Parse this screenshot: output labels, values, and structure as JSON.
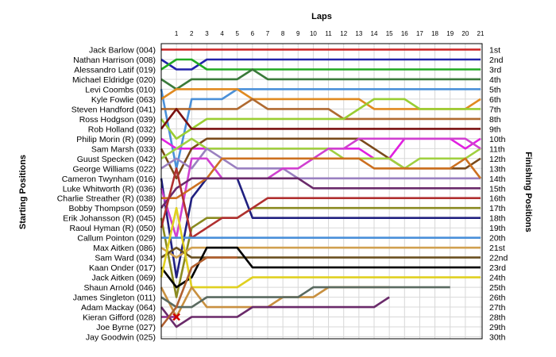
{
  "chart_data": {
    "type": "line",
    "title": "Laps",
    "ylabel_left": "Starting Positions",
    "ylabel_right": "Finishing Positions",
    "laps": [
      1,
      2,
      3,
      4,
      5,
      6,
      7,
      8,
      9,
      10,
      11,
      12,
      13,
      14,
      15,
      16,
      17,
      18,
      19,
      20,
      21
    ],
    "finishing_labels": [
      "1st",
      "2nd",
      "3rd",
      "4th",
      "5th",
      "6th",
      "7th",
      "8th",
      "9th",
      "10th",
      "11th",
      "12th",
      "13th",
      "14th",
      "15th",
      "16th",
      "17th",
      "18th",
      "19th",
      "20th",
      "21st",
      "22nd",
      "23rd",
      "24th",
      "25th",
      "26th",
      "27th",
      "28th",
      "29th",
      "30th"
    ],
    "grid_on": true,
    "y_inverted": true,
    "ylim": [
      1,
      30
    ],
    "xlim": [
      0,
      21
    ],
    "series": [
      {
        "name": "Jack Barlow (004)",
        "color": "#cc2222",
        "positions": [
          1,
          1,
          1,
          1,
          1,
          1,
          1,
          1,
          1,
          1,
          1,
          1,
          1,
          1,
          1,
          1,
          1,
          1,
          1,
          1,
          1,
          1
        ]
      },
      {
        "name": "Nathan Harrison (008)",
        "color": "#2222aa",
        "positions": [
          2,
          3,
          3,
          2,
          2,
          2,
          2,
          2,
          2,
          2,
          2,
          2,
          2,
          2,
          2,
          2,
          2,
          2,
          2,
          2,
          2,
          2
        ]
      },
      {
        "name": "Alessandro Latif (019)",
        "color": "#22aa22",
        "positions": [
          3,
          2,
          2,
          3,
          3,
          3,
          3,
          3,
          3,
          3,
          3,
          3,
          3,
          3,
          3,
          3,
          3,
          3,
          3,
          3,
          3,
          3
        ]
      },
      {
        "name": "Michael Eldridge (020)",
        "color": "#3a7a3a",
        "positions": [
          4,
          5,
          4,
          4,
          4,
          4,
          3,
          4,
          4,
          4,
          4,
          4,
          4,
          4,
          4,
          4,
          4,
          4,
          4,
          4,
          4,
          4
        ]
      },
      {
        "name": "Levi Coombs (010)",
        "color": "#4a90d9",
        "positions": [
          5,
          13,
          6,
          6,
          6,
          5,
          5,
          5,
          5,
          5,
          5,
          5,
          5,
          5,
          5,
          5,
          5,
          5,
          5,
          5,
          5,
          5
        ]
      },
      {
        "name": "Kyle Fowlie (063)",
        "color": "#e08a20",
        "positions": [
          6,
          5,
          5,
          5,
          5,
          5,
          6,
          6,
          6,
          6,
          6,
          6,
          6,
          6,
          7,
          7,
          7,
          7,
          7,
          7,
          7,
          6
        ]
      },
      {
        "name": "Steven Handford (041)",
        "color": "#b06a30",
        "positions": [
          7,
          7,
          7,
          7,
          7,
          7,
          6,
          7,
          7,
          7,
          7,
          7,
          8,
          8,
          8,
          8,
          8,
          8,
          8,
          8,
          8,
          8
        ]
      },
      {
        "name": "Ross Hodgson (039)",
        "color": "#9acd32",
        "positions": [
          8,
          10,
          9,
          8,
          8,
          8,
          8,
          8,
          8,
          8,
          8,
          8,
          8,
          7,
          6,
          6,
          6,
          7,
          7,
          7,
          7,
          7
        ]
      },
      {
        "name": "Rob Holland (032)",
        "color": "#7a1010",
        "positions": [
          9,
          7,
          9,
          9,
          9,
          9,
          9,
          9,
          9,
          9,
          9,
          9,
          9,
          9,
          9,
          9,
          9,
          9,
          9,
          9,
          9,
          9
        ]
      },
      {
        "name": "Philip Morin (R) (099)",
        "color": "#e020e0",
        "positions": [
          10,
          11,
          11,
          11,
          11,
          11,
          11,
          11,
          11,
          11,
          11,
          11,
          11,
          11,
          12,
          12,
          10,
          10,
          10,
          10,
          11,
          10
        ]
      },
      {
        "name": "Sam Marsh (033)",
        "color": "#7a4a1a",
        "positions": [
          11,
          14,
          11,
          10,
          10,
          10,
          10,
          10,
          10,
          10,
          10,
          10,
          10,
          10,
          11,
          12,
          13,
          13,
          13,
          13,
          13,
          12
        ]
      },
      {
        "name": "Guust Specken (042)",
        "color": "#a0d040",
        "positions": [
          12,
          11,
          10,
          11,
          11,
          11,
          11,
          11,
          11,
          11,
          11,
          11,
          12,
          12,
          12,
          12,
          13,
          12,
          12,
          12,
          12,
          11
        ]
      },
      {
        "name": "George Williams (022)",
        "color": "#9a80c0",
        "positions": [
          13,
          12,
          13,
          11,
          12,
          13,
          13,
          13,
          13,
          14,
          14,
          14,
          14,
          14,
          14,
          14,
          14,
          14,
          14,
          14,
          14,
          14
        ]
      },
      {
        "name": "Cameron Twynham (016)",
        "color": "#202080",
        "positions": [
          14,
          24,
          16,
          14,
          14,
          14,
          18,
          18,
          18,
          18,
          18,
          18,
          18,
          18,
          18,
          18,
          18,
          18,
          18,
          18,
          18,
          18
        ]
      },
      {
        "name": "Luke Whitworth (R) (036)",
        "color": "#d040d0",
        "positions": [
          15,
          20,
          12,
          12,
          14,
          14,
          14,
          14,
          13,
          13,
          12,
          11,
          11,
          10,
          10,
          10,
          10,
          10,
          10,
          10,
          10,
          11
        ]
      },
      {
        "name": "Charlie Streather (R) (038)",
        "color": "#cc7020",
        "positions": [
          16,
          16,
          15,
          14,
          12,
          12,
          12,
          12,
          12,
          12,
          12,
          12,
          12,
          12,
          13,
          13,
          13,
          13,
          13,
          13,
          12,
          14
        ]
      },
      {
        "name": "Bobby Thompson (059)",
        "color": "#6a2a6a",
        "positions": [
          17,
          15,
          14,
          14,
          14,
          14,
          14,
          14,
          14,
          14,
          15,
          15,
          15,
          15,
          15,
          15,
          15,
          15,
          15,
          15,
          15,
          15
        ]
      },
      {
        "name": "Erik Johansson (R) (045)",
        "color": "#8a8a20",
        "positions": [
          18,
          26,
          19,
          18,
          18,
          18,
          17,
          17,
          17,
          17,
          17,
          17,
          17,
          17,
          17,
          17,
          17,
          17,
          17,
          17,
          17,
          17
        ]
      },
      {
        "name": "Raoul Hyman (R) (050)",
        "color": "#b03030",
        "positions": [
          19,
          13,
          20,
          19,
          18,
          18,
          17,
          16,
          16,
          16,
          16,
          16,
          16,
          16,
          16,
          16,
          16,
          16,
          16,
          16,
          16,
          16
        ]
      },
      {
        "name": "Callum Pointon (029)",
        "color": "#4a90d9",
        "positions": [
          20,
          20,
          20,
          20,
          20,
          20,
          20,
          20,
          20,
          20,
          20,
          20,
          20,
          20,
          20,
          20,
          20,
          20,
          20,
          20,
          20,
          20
        ]
      },
      {
        "name": "Max Aitken (086)",
        "color": "#d0a050",
        "positions": [
          21,
          22,
          21,
          21,
          21,
          21,
          21,
          21,
          21,
          21,
          21,
          21,
          21,
          21,
          21,
          21,
          21,
          21,
          21,
          21,
          21,
          21
        ]
      },
      {
        "name": "Sam Ward (034)",
        "color": "#6a5020",
        "positions": [
          22,
          21,
          22,
          22,
          22,
          22,
          22,
          22,
          22,
          22,
          22,
          22,
          22,
          22,
          22,
          22,
          22,
          22,
          22,
          22,
          22,
          22
        ]
      },
      {
        "name": "Kaan Onder (017)",
        "color": "#000000",
        "positions": [
          23,
          25,
          24,
          21,
          21,
          21,
          23,
          23,
          23,
          23,
          23,
          23,
          23,
          23,
          23,
          23,
          23,
          23,
          23,
          23,
          23,
          23
        ]
      },
      {
        "name": "Jack Aitken (069)",
        "color": "#e0d020",
        "positions": [
          24,
          17,
          25,
          25,
          25,
          25,
          24,
          24,
          24,
          24,
          24,
          24,
          24,
          24,
          24,
          24,
          24,
          24,
          24,
          24,
          24,
          24
        ]
      },
      {
        "name": "Shaun Arnold (046)",
        "color": "#c89040",
        "positions": [
          25,
          28,
          25,
          27,
          27,
          27,
          27,
          27,
          26,
          26,
          26,
          25,
          25,
          25,
          25,
          25
        ]
      },
      {
        "name": "James Singleton (011)",
        "color": "#5a6a60",
        "positions": [
          26,
          27,
          27,
          26,
          26,
          26,
          26,
          26,
          26,
          26,
          25,
          25,
          25,
          25,
          25,
          25,
          25,
          25,
          25,
          25
        ]
      },
      {
        "name": "Adam Mackay (064)",
        "color": "#6a2a6a",
        "positions": [
          27,
          29,
          28,
          28,
          28,
          28,
          27,
          27,
          27,
          27,
          27,
          27,
          27,
          27,
          27,
          26
        ]
      },
      {
        "name": "Kieran Gifford (028)",
        "color": "#8a2a8a",
        "positions": [
          28,
          28
        ]
      },
      {
        "name": "Joe Byrne (027)",
        "color": "#b06030",
        "positions": [
          29,
          27,
          23,
          22,
          22,
          22
        ]
      },
      {
        "name": "Jay Goodwin (025)",
        "color": "#707070",
        "positions": [
          30
        ]
      }
    ],
    "markers": [
      {
        "type": "x-mark",
        "lap": 1,
        "position": 28,
        "color": "#cc0000"
      }
    ]
  }
}
